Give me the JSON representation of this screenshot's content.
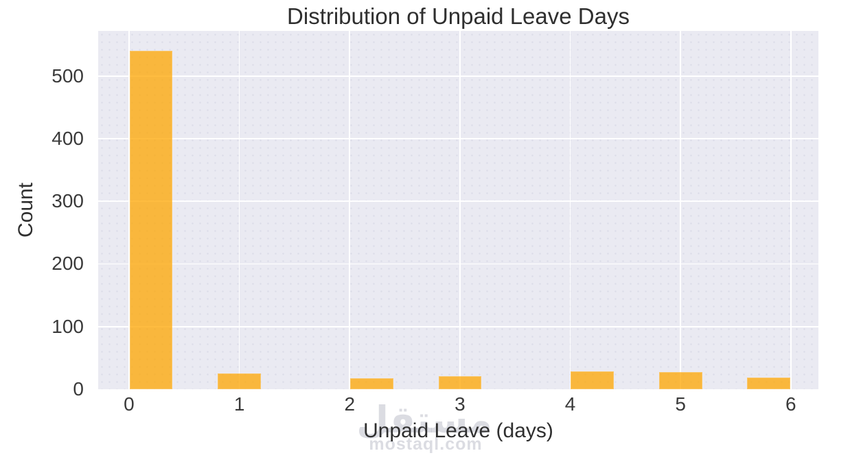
{
  "chart_data": {
    "type": "bar",
    "subtype": "histogram",
    "title": "Distribution of Unpaid Leave Days",
    "xlabel": "Unpaid Leave (days)",
    "ylabel": "Count",
    "categories": [
      "0",
      "1",
      "2",
      "3",
      "4",
      "5",
      "6"
    ],
    "values": [
      540,
      25,
      18,
      21,
      28,
      27,
      19
    ],
    "bin_centers": [
      0.2,
      1.0,
      2.2,
      3.0,
      4.2,
      5.0,
      5.8
    ],
    "bar_width_units": 0.39,
    "x_ticks": [
      0,
      1,
      2,
      3,
      4,
      5,
      6
    ],
    "y_ticks": [
      0,
      100,
      200,
      300,
      400,
      500
    ],
    "xlim": [
      -0.28,
      6.25
    ],
    "ylim": [
      0,
      572
    ],
    "grid": true,
    "legend": false,
    "colors": {
      "bar": "#FEA500",
      "bar_alpha": 0.75,
      "plot_background": "#EAEAF2",
      "gridline": "#FFFFFF",
      "text": "#2F2F2F"
    }
  },
  "watermark": {
    "logo_text": "مستقل",
    "domain_text": "mostaql.com",
    "color": "#BEC0CA"
  }
}
